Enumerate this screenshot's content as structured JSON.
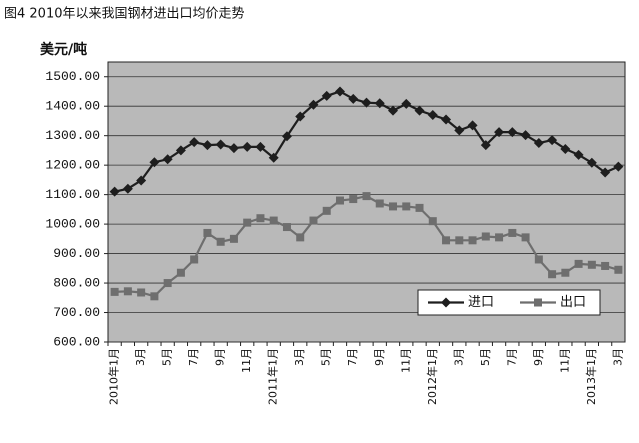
{
  "chart_data": {
    "type": "line",
    "title": "图4 2010年以来我国钢材进出口均价走势",
    "y_label": "美元/吨",
    "categories": [
      "2010年1月",
      null,
      "3月",
      null,
      "5月",
      null,
      "7月",
      null,
      "9月",
      null,
      "11月",
      null,
      "2011年1月",
      null,
      "3月",
      null,
      "5月",
      null,
      "7月",
      null,
      "9月",
      null,
      "11月",
      null,
      "2012年1月",
      null,
      "3月",
      null,
      "5月",
      null,
      "7月",
      null,
      "9月",
      null,
      "11月",
      null,
      "2013年1月",
      null,
      "3月"
    ],
    "series": [
      {
        "name": "进口",
        "color": "#1e1e1e",
        "marker": "diamond",
        "values": [
          1110,
          1120,
          1148,
          1210,
          1220,
          1250,
          1278,
          1268,
          1270,
          1258,
          1262,
          1262,
          1225,
          1298,
          1365,
          1405,
          1435,
          1450,
          1425,
          1412,
          1410,
          1385,
          1408,
          1385,
          1370,
          1355,
          1318,
          1335,
          1268,
          1312,
          1312,
          1302,
          1275,
          1285,
          1255,
          1235,
          1208,
          1175,
          1195
        ]
      },
      {
        "name": "出口",
        "color": "#6e6e6e",
        "marker": "square",
        "values": [
          770,
          772,
          768,
          755,
          800,
          835,
          880,
          970,
          940,
          950,
          1005,
          1020,
          1012,
          990,
          955,
          1012,
          1045,
          1080,
          1085,
          1095,
          1070,
          1060,
          1060,
          1055,
          1010,
          945,
          945,
          945,
          958,
          955,
          970,
          955,
          880,
          830,
          835,
          865,
          862,
          858,
          845
        ]
      }
    ],
    "ylim": [
      600,
      1550
    ],
    "yticks": [
      {
        "value": 600,
        "label": "600.00"
      },
      {
        "value": 700,
        "label": "700.00"
      },
      {
        "value": 800,
        "label": "800.00"
      },
      {
        "value": 900,
        "label": "900.00"
      },
      {
        "value": 1000,
        "label": "1000.00"
      },
      {
        "value": 1100,
        "label": "1100.00"
      },
      {
        "value": 1200,
        "label": "1200.00"
      },
      {
        "value": 1300,
        "label": "1300.00"
      },
      {
        "value": 1400,
        "label": "1400.00"
      },
      {
        "value": 1500,
        "label": "1500.00"
      }
    ],
    "grid": true,
    "plot_background": "#b9b9b9",
    "legend": "lower right"
  }
}
